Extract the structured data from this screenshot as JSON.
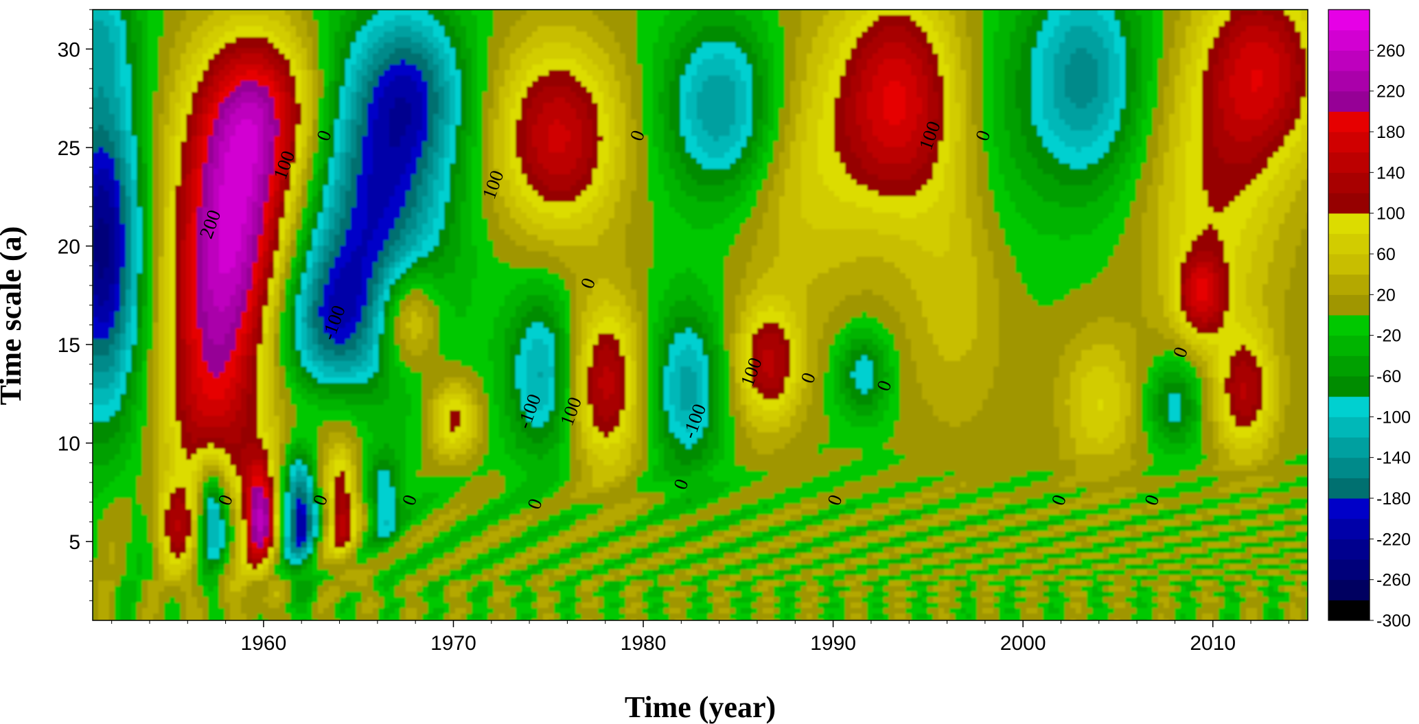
{
  "chart_data": {
    "type": "heatmap",
    "xlabel": "Time (year)",
    "ylabel": "Time scale (a)",
    "xlim": [
      1951,
      2015
    ],
    "ylim": [
      1,
      32
    ],
    "x_ticks": [
      "1960",
      "1970",
      "1980",
      "1990",
      "2000",
      "2010"
    ],
    "y_ticks": [
      "5",
      "10",
      "15",
      "20",
      "25",
      "30"
    ],
    "colorbar": {
      "min": -300,
      "max": 300,
      "tick_labels": [
        "260",
        "220",
        "180",
        "140",
        "100",
        "60",
        "20",
        "-20",
        "-60",
        "-100",
        "-140",
        "-180",
        "-220",
        "-260",
        "-300"
      ],
      "tick_values": [
        260,
        220,
        180,
        140,
        100,
        60,
        20,
        -20,
        -60,
        -100,
        -140,
        -180,
        -220,
        -260,
        -300
      ]
    },
    "contour_labels": [
      {
        "text": "200",
        "x": 1957.5,
        "y": 21.0
      },
      {
        "text": "100",
        "x": 1961.4,
        "y": 24.0
      },
      {
        "text": "0",
        "x": 1963.5,
        "y": 25.5
      },
      {
        "text": "-100",
        "x": 1964.0,
        "y": 16.0
      },
      {
        "text": "100",
        "x": 1972.4,
        "y": 23.0
      },
      {
        "text": "0",
        "x": 1980.0,
        "y": 25.5
      },
      {
        "text": "100",
        "x": 1995.4,
        "y": 25.5
      },
      {
        "text": "0",
        "x": 1998.2,
        "y": 25.5
      },
      {
        "text": "0",
        "x": 1977.4,
        "y": 18.0
      },
      {
        "text": "-100",
        "x": 1974.3,
        "y": 11.5
      },
      {
        "text": "100",
        "x": 1976.5,
        "y": 11.5
      },
      {
        "text": "-100",
        "x": 1983.0,
        "y": 11.0
      },
      {
        "text": "100",
        "x": 1986.0,
        "y": 13.5
      },
      {
        "text": "0",
        "x": 1989.0,
        "y": 13.2
      },
      {
        "text": "0",
        "x": 1993.0,
        "y": 12.8
      },
      {
        "text": "0",
        "x": 2008.6,
        "y": 14.5
      },
      {
        "text": "0",
        "x": 1958.3,
        "y": 7.0
      },
      {
        "text": "0",
        "x": 1963.3,
        "y": 7.0
      },
      {
        "text": "0",
        "x": 1968.0,
        "y": 7.0
      },
      {
        "text": "0",
        "x": 1974.6,
        "y": 6.8
      },
      {
        "text": "0",
        "x": 1982.3,
        "y": 7.8
      },
      {
        "text": "0",
        "x": 1990.4,
        "y": 7.0
      },
      {
        "text": "0",
        "x": 2002.2,
        "y": 7.0
      },
      {
        "text": "0",
        "x": 2007.1,
        "y": 7.0
      }
    ],
    "features": [
      {
        "x": 1951.5,
        "y": 20.0,
        "value": -250,
        "sx": 1.5,
        "sy": 6.0
      },
      {
        "x": 1951.2,
        "y": 31.0,
        "value": -80,
        "sx": 1.5,
        "sy": 2.5
      },
      {
        "x": 1958.4,
        "y": 21.0,
        "value": 240,
        "sx": 2.2,
        "sy": 5.0
      },
      {
        "x": 1957.2,
        "y": 12.0,
        "value": 140,
        "sx": 1.8,
        "sy": 5.0
      },
      {
        "x": 1960.0,
        "y": 27.0,
        "value": 150,
        "sx": 2.2,
        "sy": 3.0
      },
      {
        "x": 1966.0,
        "y": 22.0,
        "value": -190,
        "sx": 2.6,
        "sy": 6.0
      },
      {
        "x": 1963.2,
        "y": 16.0,
        "value": -140,
        "sx": 2.0,
        "sy": 3.0
      },
      {
        "x": 1968.0,
        "y": 28.0,
        "value": -120,
        "sx": 2.0,
        "sy": 3.0
      },
      {
        "x": 1967.6,
        "y": 16.4,
        "value": 150,
        "sx": 1.2,
        "sy": 2.0
      },
      {
        "x": 1975.5,
        "y": 25.5,
        "value": 165,
        "sx": 2.3,
        "sy": 3.4
      },
      {
        "x": 1984.2,
        "y": 27.0,
        "value": -150,
        "sx": 2.2,
        "sy": 3.3
      },
      {
        "x": 1993.4,
        "y": 27.5,
        "value": 175,
        "sx": 2.2,
        "sy": 4.0
      },
      {
        "x": 2003.2,
        "y": 28.5,
        "value": -150,
        "sx": 2.2,
        "sy": 4.0
      },
      {
        "x": 2012.6,
        "y": 29.0,
        "value": 160,
        "sx": 2.3,
        "sy": 3.4
      },
      {
        "x": 2010.0,
        "y": 22.0,
        "value": 90,
        "sx": 2.5,
        "sy": 5.0
      },
      {
        "x": 1988.5,
        "y": 24.0,
        "value": 70,
        "sx": 2.5,
        "sy": 5.0
      },
      {
        "x": 1996.5,
        "y": 18.0,
        "value": 55,
        "sx": 2.0,
        "sy": 5.0
      },
      {
        "x": 1999.0,
        "y": 25.0,
        "value": -30,
        "sx": 1.8,
        "sy": 5.0
      },
      {
        "x": 1974.6,
        "y": 13.5,
        "value": -125,
        "sx": 1.3,
        "sy": 3.0
      },
      {
        "x": 1978.0,
        "y": 13.0,
        "value": 150,
        "sx": 1.3,
        "sy": 3.0
      },
      {
        "x": 1982.3,
        "y": 12.8,
        "value": -130,
        "sx": 1.3,
        "sy": 3.0
      },
      {
        "x": 1986.6,
        "y": 14.0,
        "value": 140,
        "sx": 1.2,
        "sy": 2.2
      },
      {
        "x": 1991.6,
        "y": 13.5,
        "value": -100,
        "sx": 1.0,
        "sy": 1.6
      },
      {
        "x": 2004.0,
        "y": 12.0,
        "value": 80,
        "sx": 1.4,
        "sy": 2.5
      },
      {
        "x": 2008.0,
        "y": 12.0,
        "value": -100,
        "sx": 1.0,
        "sy": 1.6
      },
      {
        "x": 2011.7,
        "y": 12.5,
        "value": 130,
        "sx": 1.1,
        "sy": 2.2
      },
      {
        "x": 2009.4,
        "y": 17.5,
        "value": 130,
        "sx": 0.9,
        "sy": 1.5
      },
      {
        "x": 1970.0,
        "y": 11.2,
        "value": 120,
        "sx": 0.9,
        "sy": 1.4
      },
      {
        "x": 1963.5,
        "y": 11.5,
        "value": 50,
        "sx": 2.0,
        "sy": 2.0
      },
      {
        "x": 1957.3,
        "y": 6.5,
        "value": -200,
        "sx": 0.6,
        "sy": 2.0
      },
      {
        "x": 1959.8,
        "y": 6.5,
        "value": 220,
        "sx": 0.6,
        "sy": 2.0
      },
      {
        "x": 1961.9,
        "y": 6.5,
        "value": -220,
        "sx": 0.6,
        "sy": 2.0
      },
      {
        "x": 1964.1,
        "y": 6.8,
        "value": 150,
        "sx": 0.6,
        "sy": 2.0
      },
      {
        "x": 1966.4,
        "y": 7.2,
        "value": -110,
        "sx": 0.6,
        "sy": 1.5
      },
      {
        "x": 1955.2,
        "y": 6.0,
        "value": 100,
        "sx": 0.7,
        "sy": 1.5
      }
    ]
  }
}
